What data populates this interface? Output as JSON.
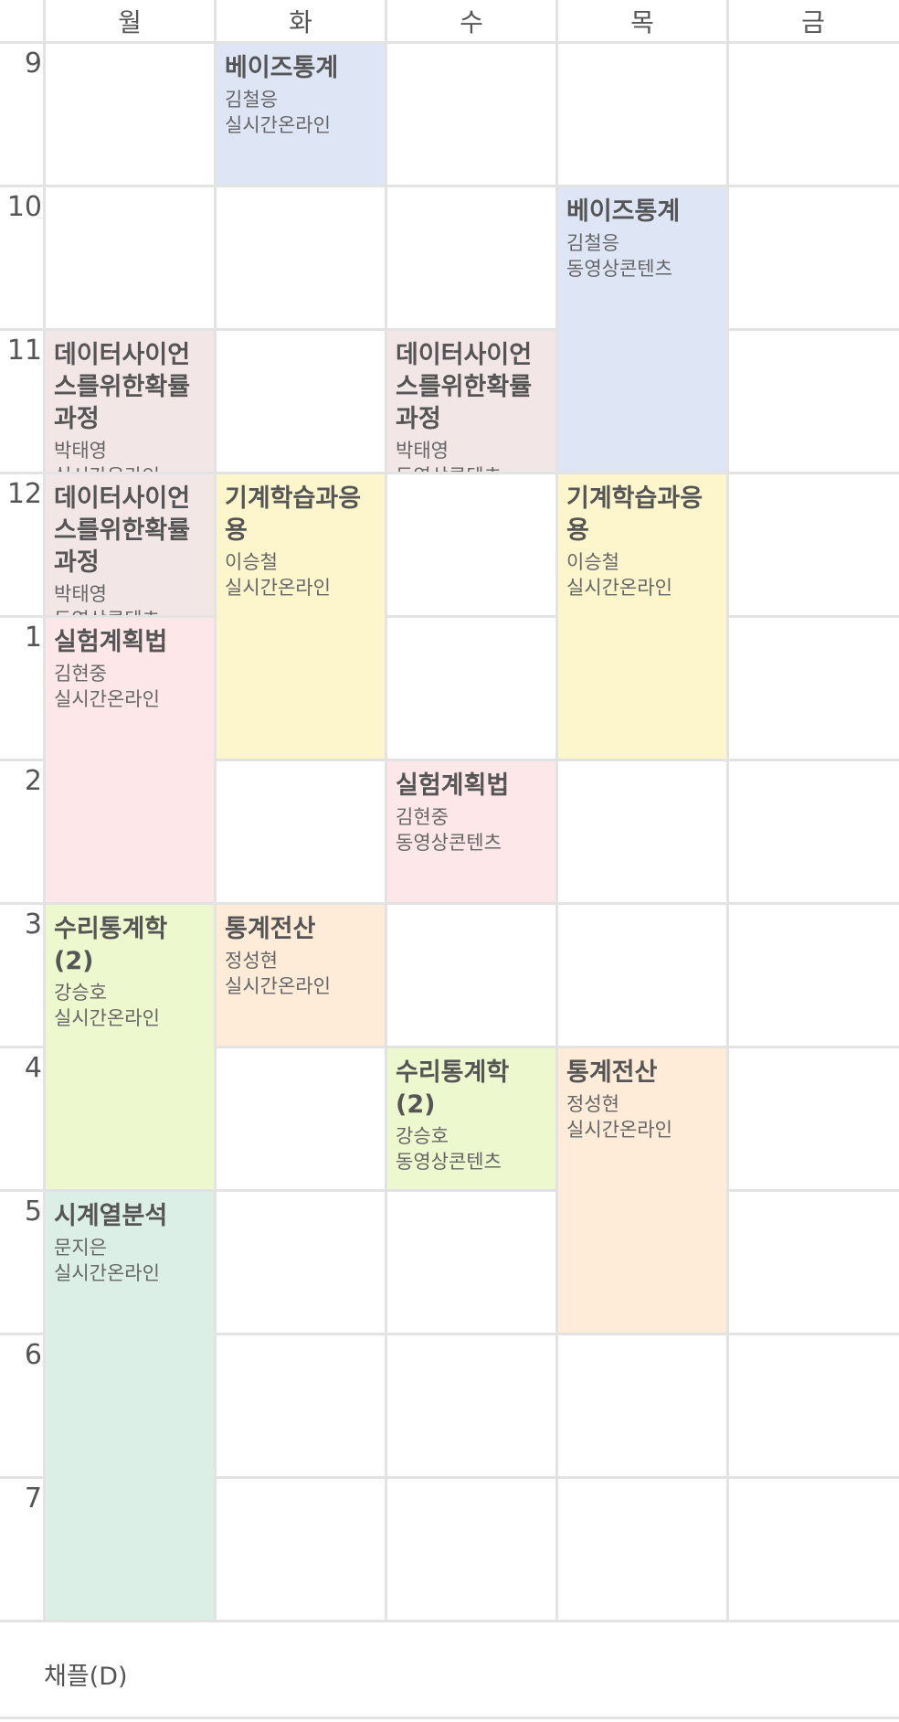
{
  "days": [
    "월",
    "화",
    "수",
    "목",
    "금"
  ],
  "hours": [
    "9",
    "10",
    "11",
    "12",
    "1",
    "2",
    "3",
    "4",
    "5",
    "6",
    "7"
  ],
  "colors": {
    "blue": "#dee6f5",
    "pink_gray": "#f2e6e6",
    "yellow": "#fdf6cd",
    "pink": "#fee7e8",
    "green": "#eef8cf",
    "orange": "#feebd8",
    "teal": "#dcefe6",
    "grid_line": "#e3e3e3"
  },
  "classes": [
    {
      "title": "베이즈통계",
      "professor": "김철응",
      "type": "실시간온라인"
    },
    {
      "title": "베이즈통계",
      "professor": "김철응",
      "type": "동영상콘텐츠"
    },
    {
      "title": "데이터사이언스를위한확률과정",
      "professor": "박태영",
      "type": "실시간온라인"
    },
    {
      "title": "데이터사이언스를위한확률과정",
      "professor": "박태영",
      "type": "동영상콘텐츠"
    },
    {
      "title": "데이터사이언스를위한확률과정",
      "professor": "박태영",
      "type": "동영상콘텐츠"
    },
    {
      "title": "기계학습과응용",
      "professor": "이승철",
      "type": "실시간온라인"
    },
    {
      "title": "기계학습과응용",
      "professor": "이승철",
      "type": "실시간온라인"
    },
    {
      "title": "실험계획법",
      "professor": "김현중",
      "type": "실시간온라인"
    },
    {
      "title": "실험계획법",
      "professor": "김현중",
      "type": "동영상콘텐츠"
    },
    {
      "title": "수리통계학(2)",
      "professor": "강승호",
      "type": "실시간온라인"
    },
    {
      "title": "통계전산",
      "professor": "정성현",
      "type": "실시간온라인"
    },
    {
      "title": "수리통계학(2)",
      "professor": "강승호",
      "type": "동영상콘텐츠"
    },
    {
      "title": "통계전산",
      "professor": "정성현",
      "type": "실시간온라인"
    },
    {
      "title": "시계열분석",
      "professor": "문지은",
      "type": "실시간온라인"
    }
  ],
  "footer": {
    "label": "채플(D)"
  }
}
